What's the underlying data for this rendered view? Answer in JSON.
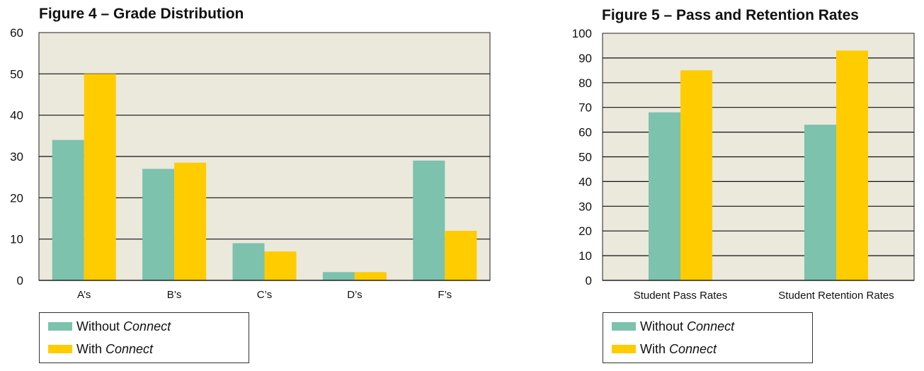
{
  "chart_data": [
    {
      "type": "bar",
      "title": "Figure 4 – Grade Distribution",
      "categories": [
        "A’s",
        "B’s",
        "C’s",
        "D’s",
        "F’s"
      ],
      "series": [
        {
          "name": "Without Connect",
          "values": [
            34,
            27,
            9,
            2,
            29
          ]
        },
        {
          "name": "With Connect",
          "values": [
            50,
            28.5,
            7,
            2,
            12
          ]
        }
      ],
      "ylim": [
        0,
        60
      ],
      "yticks": [
        0,
        10,
        20,
        30,
        40,
        50,
        60
      ],
      "grid": true,
      "legend": "bottom-left"
    },
    {
      "type": "bar",
      "title": "Figure 5 – Pass and Retention Rates",
      "categories": [
        "Student Pass Rates",
        "Student Retention Rates"
      ],
      "series": [
        {
          "name": "Without Connect",
          "values": [
            68,
            63
          ]
        },
        {
          "name": "With Connect",
          "values": [
            85,
            93
          ]
        }
      ],
      "ylim": [
        0,
        100
      ],
      "yticks": [
        0,
        10,
        20,
        30,
        40,
        50,
        60,
        70,
        80,
        90,
        100
      ],
      "grid": true,
      "legend": "bottom-left"
    }
  ],
  "colors": {
    "without": "#7cc2ad",
    "with": "#ffcc00",
    "plot_bg": "#ebe8dc",
    "grid": "#111111"
  },
  "legend": {
    "without_prefix": "Without",
    "with_prefix": "With",
    "emphasis": "Connect"
  }
}
